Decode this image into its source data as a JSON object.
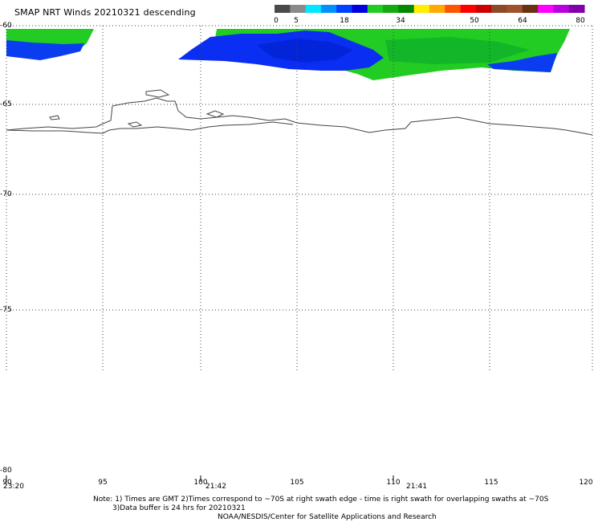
{
  "title": "SMAP NRT Winds  20210321  descending",
  "colorbar": {
    "labels": [
      "0",
      "5",
      "18",
      "34",
      "50",
      "64",
      "80"
    ],
    "segments": [
      "#4a4a4a",
      "#8a8a8a",
      "#00e8ff",
      "#0090ff",
      "#0040ff",
      "#0000e0",
      "#22cc22",
      "#11aa11",
      "#008800",
      "#ffee00",
      "#ffaa00",
      "#ff5500",
      "#ff0000",
      "#cc0000",
      "#8b4a2a",
      "#a0522d",
      "#6b3010",
      "#ff00ff",
      "#bb00dd",
      "#8000aa"
    ]
  },
  "latitudes": [
    "-60",
    "-65",
    "-70",
    "-75",
    "-80"
  ],
  "longitudes": [
    "90",
    "95",
    "100",
    "105",
    "110",
    "115",
    "120"
  ],
  "swath_times": [
    "23:20",
    "21:42",
    "21:41"
  ],
  "notes": [
    "Note: 1) Times are GMT 2)Times correspond to ~70S at right swath edge - time is right swath for overlapping swaths at ~70S",
    "3)Data buffer is 24 hrs for 20210321",
    "NOAA/NESDIS/Center for Satellite Applications and Research"
  ]
}
